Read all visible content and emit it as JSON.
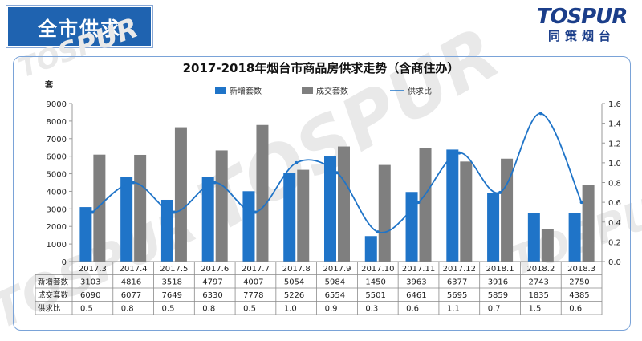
{
  "header": {
    "title": "全市供求",
    "logo_main": "TOSPUR",
    "logo_sub": "同策烟台",
    "watermark": "TOSPUR"
  },
  "chart_data": {
    "type": "bar",
    "title": "2017-2018年烟台市商品房供求走势（含商住办）",
    "ylabel": "套",
    "ylim": [
      0,
      9000
    ],
    "y2lim": [
      0,
      1.6
    ],
    "yticks": [
      0,
      1000,
      2000,
      3000,
      4000,
      5000,
      6000,
      7000,
      8000,
      9000
    ],
    "y2ticks": [
      "0.0",
      "0.2",
      "0.4",
      "0.6",
      "0.8",
      "1.0",
      "1.2",
      "1.4",
      "1.6"
    ],
    "categories": [
      "2017.3",
      "2017.4",
      "2017.5",
      "2017.6",
      "2017.7",
      "2017.8",
      "2017.9",
      "2017.10",
      "2017.11",
      "2017.12",
      "2018.1",
      "2018.2",
      "2018.3"
    ],
    "series": [
      {
        "name": "新增套数",
        "kind": "bar",
        "color": "#1f74c8",
        "values": [
          3103,
          4816,
          3518,
          4797,
          4007,
          5054,
          5984,
          1450,
          3963,
          6377,
          3916,
          2743,
          2750
        ]
      },
      {
        "name": "成交套数",
        "kind": "bar",
        "color": "#7f7f7f",
        "values": [
          6090,
          6077,
          7649,
          6330,
          7778,
          5226,
          6554,
          5501,
          6461,
          5695,
          5859,
          1835,
          4385
        ]
      },
      {
        "name": "供求比",
        "kind": "line",
        "axis": "right",
        "color": "#1f74c8",
        "values": [
          0.5,
          0.8,
          0.5,
          0.8,
          0.5,
          1.0,
          0.9,
          0.3,
          0.6,
          1.1,
          0.7,
          1.5,
          0.6
        ]
      }
    ],
    "table_rows": [
      {
        "label": "新增套数",
        "cells": [
          "3103",
          "4816",
          "3518",
          "4797",
          "4007",
          "5054",
          "5984",
          "1450",
          "3963",
          "6377",
          "3916",
          "2743",
          "2750"
        ]
      },
      {
        "label": "成交套数",
        "cells": [
          "6090",
          "6077",
          "7649",
          "6330",
          "7778",
          "5226",
          "6554",
          "5501",
          "6461",
          "5695",
          "5859",
          "1835",
          "4385"
        ]
      },
      {
        "label": "供求比",
        "cells": [
          "0.5",
          "0.8",
          "0.5",
          "0.8",
          "0.5",
          "1.0",
          "0.9",
          "0.3",
          "0.6",
          "1.1",
          "0.7",
          "1.5",
          "0.6"
        ]
      }
    ]
  }
}
